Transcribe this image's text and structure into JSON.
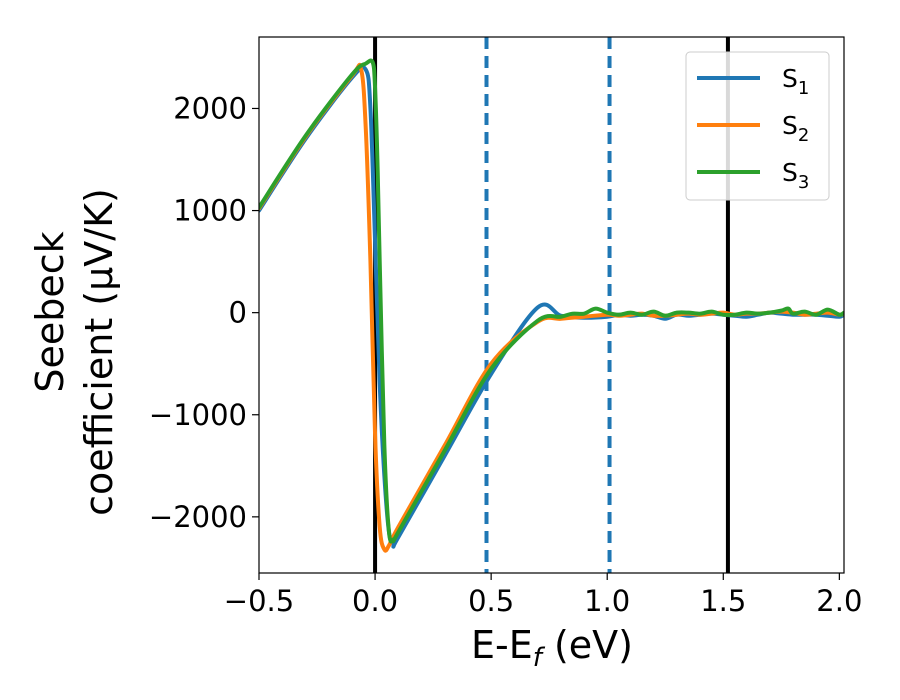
{
  "chart_data": {
    "type": "line",
    "xlabel": {
      "main": "E-E",
      "sub": "f",
      "unit": " (eV)"
    },
    "ylabel": {
      "line1": "Seebeck",
      "line2": "coefficient  (μV/K)"
    },
    "xlim": [
      -0.5,
      2.02
    ],
    "ylim": [
      -2550,
      2700
    ],
    "xticks": [
      -0.5,
      0.0,
      0.5,
      1.0,
      1.5,
      2.0
    ],
    "xtick_labels": [
      "−0.5",
      "0.0",
      "0.5",
      "1.0",
      "1.5",
      "2.0"
    ],
    "yticks": [
      -2000,
      -1000,
      0,
      1000,
      2000
    ],
    "ytick_labels": [
      "−2000",
      "−1000",
      "0",
      "1000",
      "2000"
    ],
    "legend_position": "top-right",
    "vlines": [
      {
        "x": 0.0,
        "style": "solid",
        "color": "#000000"
      },
      {
        "x": 1.52,
        "style": "solid",
        "color": "#000000"
      },
      {
        "x": 0.48,
        "style": "dashed",
        "color": "#1f77b4"
      },
      {
        "x": 1.01,
        "style": "dashed",
        "color": "#1f77b4"
      }
    ],
    "series": [
      {
        "name": "S",
        "sub": "1",
        "color": "#1f77b4",
        "x": [
          -0.5,
          -0.3,
          -0.1,
          -0.04,
          -0.02,
          0.0,
          0.02,
          0.04,
          0.06,
          0.08,
          0.1,
          0.3,
          0.5,
          0.7,
          0.8,
          0.9,
          1.0,
          1.05,
          1.1,
          1.15,
          1.2,
          1.25,
          1.3,
          1.35,
          1.4,
          1.45,
          1.5,
          1.55,
          1.6,
          1.65,
          1.7,
          1.75,
          1.8,
          1.85,
          1.9,
          1.95,
          2.0,
          2.02
        ],
        "y": [
          1000,
          1700,
          2300,
          2380,
          2000,
          700,
          -700,
          -1600,
          -2150,
          -2270,
          -2200,
          -1400,
          -600,
          50,
          -30,
          -50,
          -40,
          -20,
          -30,
          -20,
          -30,
          -60,
          -20,
          -30,
          -20,
          -10,
          -20,
          -30,
          -40,
          -20,
          0,
          -10,
          -20,
          -20,
          -20,
          -30,
          -40,
          -20
        ]
      },
      {
        "name": "S",
        "sub": "2",
        "color": "#ff7f0e",
        "x": [
          -0.5,
          -0.3,
          -0.1,
          -0.06,
          -0.04,
          -0.02,
          0.0,
          0.02,
          0.04,
          0.06,
          0.1,
          0.3,
          0.5,
          0.7,
          0.8,
          0.9,
          1.0,
          1.05,
          1.1,
          1.15,
          1.2,
          1.25,
          1.3,
          1.35,
          1.4,
          1.45,
          1.5,
          1.55,
          1.6,
          1.65,
          1.7,
          1.75,
          1.8,
          1.85,
          1.9,
          1.95,
          2.0,
          2.02
        ],
        "y": [
          1020,
          1720,
          2320,
          2380,
          1800,
          500,
          -1200,
          -2100,
          -2320,
          -2280,
          -2100,
          -1300,
          -500,
          -90,
          -60,
          -40,
          -20,
          -30,
          -20,
          -10,
          -30,
          -30,
          -20,
          -10,
          -20,
          -10,
          0,
          -20,
          -10,
          -10,
          0,
          10,
          0,
          -20,
          -10,
          0,
          -20,
          -10
        ]
      },
      {
        "name": "S",
        "sub": "3",
        "color": "#2ca02c",
        "x": [
          -0.5,
          -0.3,
          -0.1,
          -0.04,
          -0.01,
          0.0,
          0.01,
          0.02,
          0.04,
          0.06,
          0.08,
          0.1,
          0.3,
          0.5,
          0.7,
          0.8,
          0.85,
          0.9,
          0.95,
          1.0,
          1.05,
          1.1,
          1.15,
          1.2,
          1.25,
          1.3,
          1.35,
          1.4,
          1.45,
          1.5,
          1.55,
          1.6,
          1.65,
          1.7,
          1.75,
          1.78,
          1.8,
          1.85,
          1.9,
          1.95,
          2.0,
          2.02
        ],
        "y": [
          1030,
          1730,
          2330,
          2440,
          2450,
          2200,
          1500,
          500,
          -1300,
          -2150,
          -2220,
          -2150,
          -1350,
          -550,
          -80,
          -40,
          -10,
          -10,
          40,
          0,
          -20,
          0,
          -20,
          10,
          -30,
          0,
          0,
          -10,
          10,
          -20,
          -20,
          0,
          -10,
          0,
          20,
          40,
          -10,
          10,
          -20,
          30,
          -20,
          0
        ]
      }
    ]
  }
}
